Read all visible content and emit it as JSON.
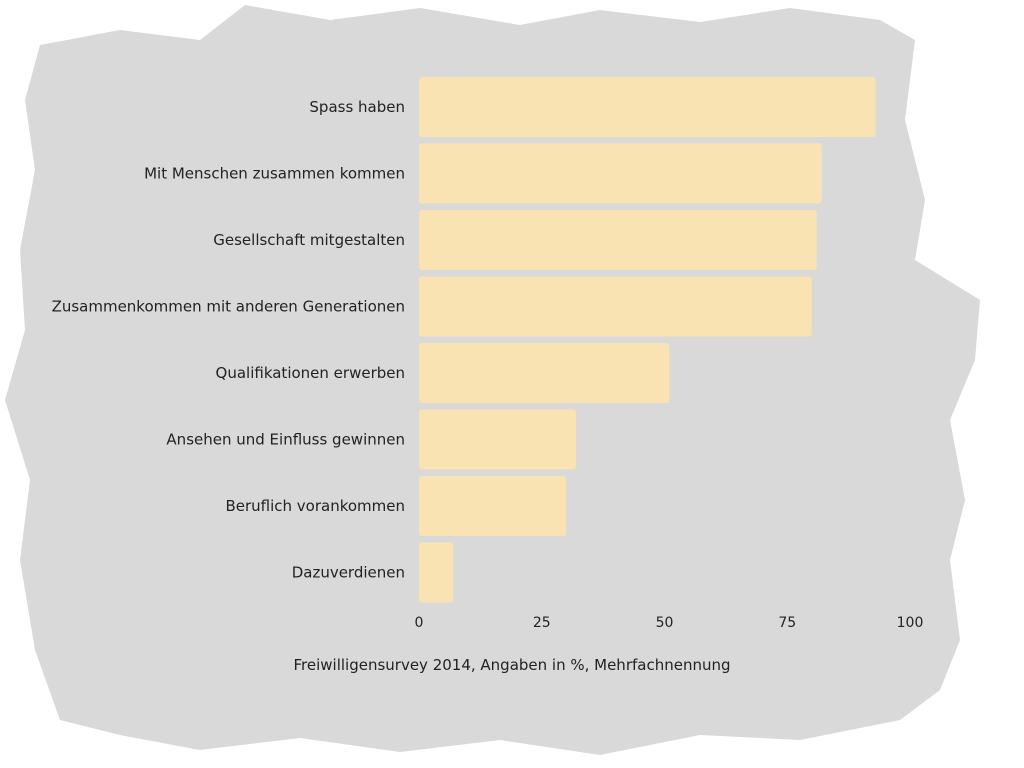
{
  "chart_data": {
    "type": "bar",
    "orientation": "horizontal",
    "categories": [
      "Spass haben",
      "Mit Menschen zusammen kommen",
      "Gesellschaft mitgestalten",
      "Zusammenkommen mit anderen Generationen",
      "Qualifikationen erwerben",
      "Ansehen und Einfluss gewinnen",
      "Beruflich vorankommen",
      "Dazuverdienen"
    ],
    "values": [
      93,
      82,
      81,
      80,
      51,
      32,
      30,
      7
    ],
    "xlim": [
      0,
      100
    ],
    "xticks": [
      "0",
      "25",
      "50",
      "75",
      "100"
    ],
    "caption": "Freiwilligensurvey 2014, Angaben in %, Mehrfachnennung",
    "grid": false,
    "colors": {
      "bar": "#fae3b3",
      "background_blotch": "#d9d9d9"
    }
  }
}
